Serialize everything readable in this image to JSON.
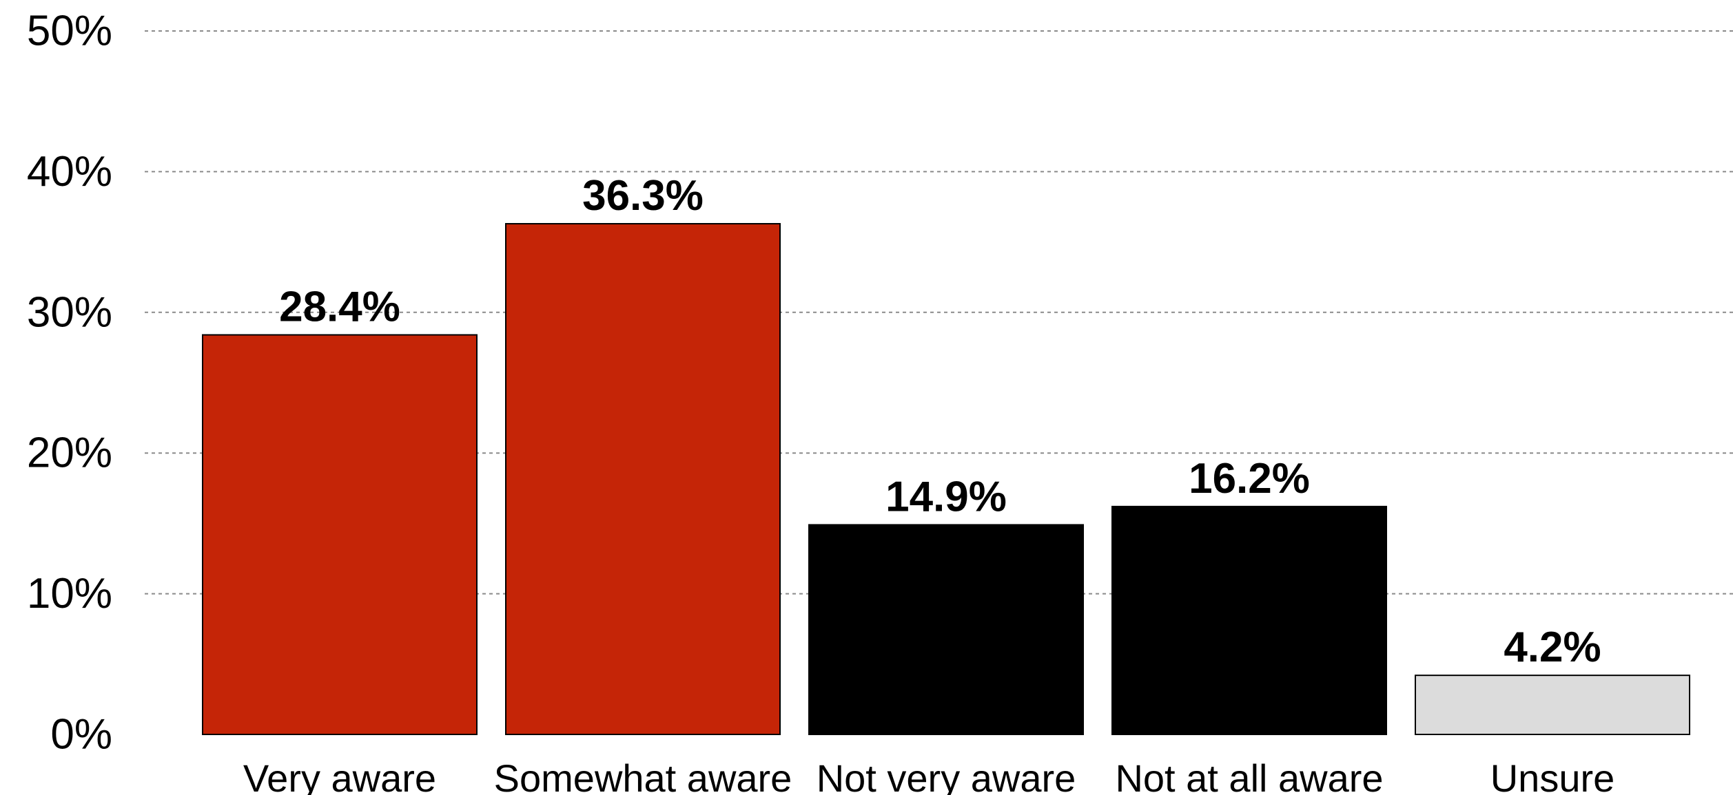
{
  "chart_data": {
    "type": "bar",
    "categories": [
      "Very aware",
      "Somewhat aware",
      "Not very aware",
      "Not at all aware",
      "Unsure"
    ],
    "values": [
      28.4,
      36.3,
      14.9,
      16.2,
      4.2
    ],
    "value_labels": [
      "28.4%",
      "36.3%",
      "14.9%",
      "16.2%",
      "4.2%"
    ],
    "bar_colors": [
      "#c52507",
      "#c52507",
      "#000000",
      "#000000",
      "#dcdcdc"
    ],
    "ylim": [
      0,
      50
    ],
    "y_ticks": [
      0,
      10,
      20,
      30,
      40,
      50
    ],
    "y_tick_labels": [
      "0%",
      "10%",
      "20%",
      "30%",
      "40%",
      "50%"
    ],
    "grid": true,
    "xlabel": "",
    "ylabel": "",
    "title": ""
  }
}
